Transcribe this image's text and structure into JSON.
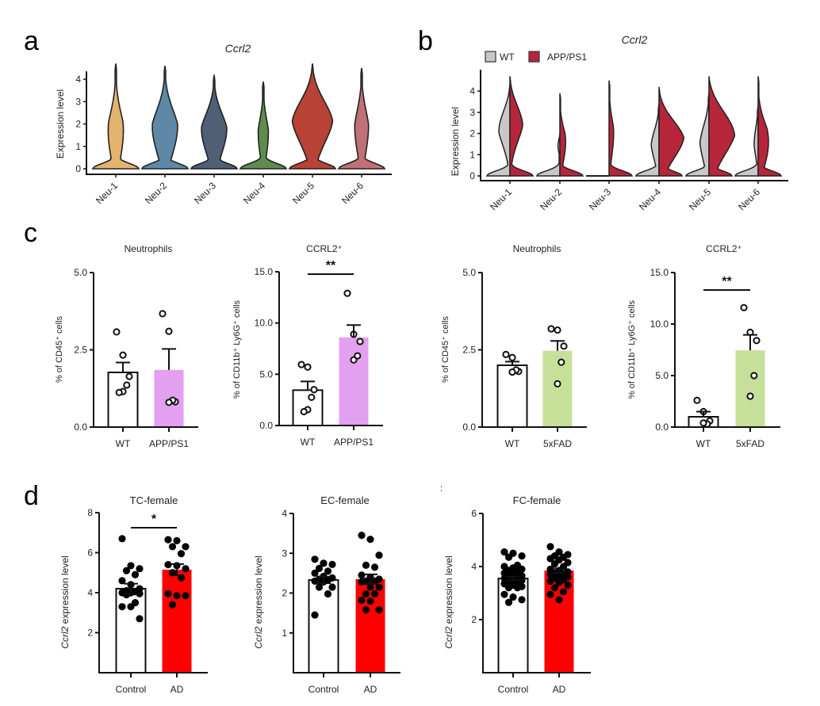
{
  "figure": {
    "panel_labels": [
      "a",
      "b",
      "c",
      "d"
    ]
  },
  "chart_data": [
    {
      "id": "a",
      "type": "violin",
      "title": "Ccrl2",
      "ylabel": "Expression level",
      "xlabel": "",
      "ylim": [
        0,
        4.8
      ],
      "yticks": [
        0,
        1,
        2,
        3,
        4
      ],
      "categories": [
        "Neu-1",
        "Neu-2",
        "Neu-3",
        "Neu-4",
        "Neu-5",
        "Neu-6"
      ],
      "colors": [
        "#E3B46E",
        "#5E88A6",
        "#4F5F75",
        "#5F8C4E",
        "#B84235",
        "#C07077"
      ],
      "series": [
        {
          "name": "Neu-1",
          "max": 4.7,
          "neck": 0.75,
          "upper_bulge_center": 1.7,
          "upper_bulge_width": 0.33,
          "base_width": 1.0
        },
        {
          "name": "Neu-2",
          "max": 4.6,
          "neck": 0.7,
          "upper_bulge_center": 1.9,
          "upper_bulge_width": 0.55,
          "base_width": 1.0
        },
        {
          "name": "Neu-3",
          "max": 4.2,
          "neck": 0.7,
          "upper_bulge_center": 1.8,
          "upper_bulge_width": 0.55,
          "base_width": 1.0
        },
        {
          "name": "Neu-4",
          "max": 3.9,
          "neck": 0.7,
          "upper_bulge_center": 1.6,
          "upper_bulge_width": 0.22,
          "base_width": 1.0
        },
        {
          "name": "Neu-5",
          "max": 4.7,
          "neck": 0.85,
          "upper_bulge_center": 2.4,
          "upper_bulge_width": 0.9,
          "base_width": 1.0
        },
        {
          "name": "Neu-6",
          "max": 4.5,
          "neck": 0.75,
          "upper_bulge_center": 1.9,
          "upper_bulge_width": 0.3,
          "base_width": 1.0
        }
      ]
    },
    {
      "id": "b",
      "type": "split-violin",
      "title": "Ccrl2",
      "ylabel": "Expression level",
      "ylim": [
        0,
        4.8
      ],
      "yticks": [
        0,
        1,
        2,
        3,
        4
      ],
      "categories": [
        "Neu-1",
        "Neu-2",
        "Neu-3",
        "Neu-4",
        "Neu-5",
        "Neu-6"
      ],
      "legend": [
        {
          "label": "WT",
          "color": "#C8C8C8"
        },
        {
          "label": "APP/PS1",
          "color": "#B7253A"
        }
      ],
      "legend_position": "top-left",
      "series": [
        {
          "name": "WT",
          "color": "#C8C8C8",
          "shapes": [
            {
              "max": 4.3,
              "neck": 0.9,
              "bulge_center": 2.6,
              "bulge_width": 0.55
            },
            {
              "max": 2.0,
              "neck": 0.9,
              "bulge_center": 1.6,
              "bulge_width": 0.12
            },
            {
              "max": 0.0,
              "neck": 0.0,
              "bulge_center": 0.0,
              "bulge_width": 0.0
            },
            {
              "max": 3.4,
              "neck": 0.5,
              "bulge_center": 1.7,
              "bulge_width": 0.35
            },
            {
              "max": 3.9,
              "neck": 0.4,
              "bulge_center": 1.8,
              "bulge_width": 0.4
            },
            {
              "max": 3.3,
              "neck": 0.5,
              "bulge_center": 1.9,
              "bulge_width": 0.2
            }
          ]
        },
        {
          "name": "APP/PS1",
          "color": "#B7253A",
          "shapes": [
            {
              "max": 4.7,
              "neck": 1.2,
              "bulge_center": 2.8,
              "bulge_width": 0.6
            },
            {
              "max": 3.9,
              "neck": 1.0,
              "bulge_center": 1.6,
              "bulge_width": 0.25
            },
            {
              "max": 4.5,
              "neck": 1.2,
              "bulge_center": 2.0,
              "bulge_width": 0.2
            },
            {
              "max": 4.2,
              "neck": 0.6,
              "bulge_center": 2.0,
              "bulge_width": 1.1
            },
            {
              "max": 4.7,
              "neck": 0.5,
              "bulge_center": 2.4,
              "bulge_width": 1.2
            },
            {
              "max": 4.7,
              "neck": 1.0,
              "bulge_center": 1.6,
              "bulge_width": 0.45
            }
          ]
        }
      ]
    },
    {
      "id": "c1",
      "type": "bar",
      "title": "Neutrophils",
      "ylabel": "% of CD45⁺ cells",
      "ylim": [
        0,
        5.0
      ],
      "yticks": [
        "0.0",
        "2.5",
        "5.0"
      ],
      "categories": [
        "WT",
        "APP/PS1"
      ],
      "bar_colors": [
        "#FFFFFF",
        "#E3A0F0"
      ],
      "means": [
        1.77,
        1.85
      ],
      "sem": [
        0.32,
        0.68
      ],
      "points": [
        [
          3.08,
          2.33,
          1.64,
          1.36,
          1.15,
          1.12
        ],
        [
          3.67,
          3.1,
          0.82,
          0.87,
          0.8
        ]
      ],
      "significance": ""
    },
    {
      "id": "c2",
      "type": "bar",
      "title": "CCRL2⁺",
      "ylabel": "% of CD11b⁺ Ly6G⁺ cells",
      "ylim": [
        0,
        15.0
      ],
      "yticks": [
        "0.0",
        "5.0",
        "10.0",
        "15.0"
      ],
      "categories": [
        "WT",
        "APP/PS1"
      ],
      "bar_colors": [
        "#FFFFFF",
        "#E3A0F0"
      ],
      "means": [
        3.45,
        8.6
      ],
      "sem": [
        0.85,
        1.2
      ],
      "points": [
        [
          5.95,
          5.7,
          3.5,
          2.75,
          1.55,
          1.35
        ],
        [
          12.9,
          8.9,
          8.2,
          6.8,
          6.4
        ]
      ],
      "significance": "**"
    },
    {
      "id": "c3",
      "type": "bar",
      "title": "Neutrophils",
      "ylabel": "% of CD45⁺ cells",
      "ylim": [
        0,
        5.0
      ],
      "yticks": [
        "0.0",
        "2.5",
        "5.0"
      ],
      "categories": [
        "WT",
        "5xFAD"
      ],
      "bar_colors": [
        "#FFFFFF",
        "#C6E09A"
      ],
      "means": [
        2.0,
        2.47
      ],
      "sem": [
        0.12,
        0.32
      ],
      "points": [
        [
          2.35,
          2.25,
          1.8,
          1.85,
          1.78
        ],
        [
          3.18,
          3.14,
          2.62,
          2.1,
          1.4
        ]
      ],
      "significance": ""
    },
    {
      "id": "c4",
      "type": "bar",
      "title": "CCRL2⁺",
      "ylabel": "% of CD11b⁺ Ly6G⁺ cells",
      "ylim": [
        0,
        15.0
      ],
      "yticks": [
        "0.0",
        "5.0",
        "10.0",
        "15.0"
      ],
      "categories": [
        "WT",
        "5xFAD"
      ],
      "bar_colors": [
        "#FFFFFF",
        "#C6E09A"
      ],
      "means": [
        1.0,
        7.45
      ],
      "sem": [
        0.5,
        1.5
      ],
      "points": [
        [
          2.6,
          1.5,
          0.6,
          0.3,
          0.4
        ],
        [
          11.6,
          9.2,
          8.4,
          5.0,
          3.0
        ]
      ],
      "significance": "**"
    },
    {
      "id": "d1",
      "type": "bar",
      "title": "TC-female",
      "ylabel": "Ccrl2 expression level",
      "ylim": [
        0,
        8
      ],
      "yticks": [
        "2",
        "4",
        "6",
        "8"
      ],
      "categories": [
        "Control",
        "AD"
      ],
      "bar_colors": [
        "#FFFFFF",
        "#FF0000"
      ],
      "means": [
        4.2,
        5.15
      ],
      "sem": [
        0.25,
        0.28
      ],
      "points": [
        [
          6.7,
          5.35,
          5.2,
          5.1,
          4.9,
          4.6,
          4.4,
          4.2,
          4.1,
          4.05,
          4.0,
          4.0,
          3.95,
          3.9,
          3.5,
          3.3,
          3.3,
          2.7
        ],
        [
          6.65,
          6.6,
          6.3,
          6.3,
          5.95,
          5.4,
          5.35,
          5.2,
          5.0,
          4.75,
          3.95,
          3.85,
          3.85,
          3.4
        ]
      ],
      "significance": "*"
    },
    {
      "id": "d2",
      "type": "bar",
      "title": "EC-female",
      "ylabel": "Ccrl2 expression level",
      "ylim": [
        0,
        4
      ],
      "yticks": [
        "1",
        "2",
        "3",
        "4"
      ],
      "categories": [
        "Control",
        "AD"
      ],
      "bar_colors": [
        "#FFFFFF",
        "#FF0000"
      ],
      "means": [
        2.33,
        2.35
      ],
      "sem": [
        0.08,
        0.12
      ],
      "points": [
        [
          2.85,
          2.75,
          2.72,
          2.62,
          2.55,
          2.5,
          2.42,
          2.38,
          2.35,
          2.32,
          2.3,
          2.28,
          2.15,
          2.15,
          1.98,
          1.45
        ],
        [
          3.45,
          3.35,
          2.95,
          2.7,
          2.65,
          2.45,
          2.4,
          2.35,
          2.3,
          2.3,
          2.28,
          2.15,
          2.15,
          1.98,
          1.98,
          1.82,
          1.8,
          1.58,
          1.58
        ]
      ],
      "significance": ""
    },
    {
      "id": "d3",
      "type": "bar",
      "title": "FC-female",
      "ylabel": "Ccrl2 expression level",
      "ylim": [
        0,
        6
      ],
      "yticks": [
        "2",
        "4",
        "6"
      ],
      "categories": [
        "Control",
        "AD"
      ],
      "bar_colors": [
        "#FFFFFF",
        "#FF0000"
      ],
      "means": [
        3.55,
        3.85
      ],
      "sem": [
        0.07,
        0.08
      ],
      "points": [
        [
          4.55,
          4.5,
          4.4,
          4.35,
          4.05,
          4.0,
          3.95,
          3.9,
          3.85,
          3.8,
          3.75,
          3.7,
          3.65,
          3.62,
          3.6,
          3.55,
          3.5,
          3.48,
          3.45,
          3.4,
          3.35,
          3.3,
          3.25,
          3.2,
          3.2,
          2.95,
          2.85,
          2.75,
          2.65
        ],
        [
          4.75,
          4.55,
          4.45,
          4.4,
          4.35,
          4.3,
          4.25,
          4.15,
          4.1,
          4.0,
          3.9,
          3.85,
          3.8,
          3.75,
          3.72,
          3.7,
          3.65,
          3.6,
          3.55,
          3.5,
          3.45,
          3.4,
          3.3,
          3.2,
          3.05,
          2.95,
          2.75
        ]
      ],
      "significance": ""
    }
  ]
}
